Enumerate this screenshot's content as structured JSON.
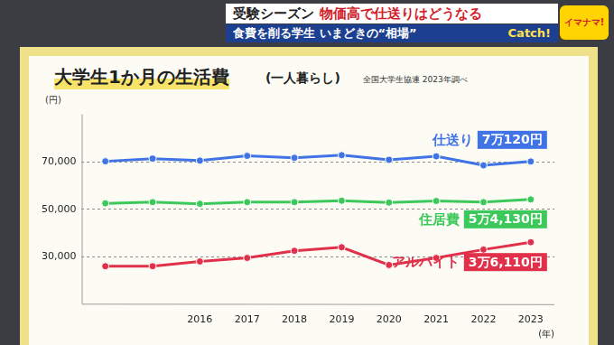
{
  "header": {
    "headline": [
      "受験シーズン",
      "物価高で仕送りはどうなる"
    ],
    "subheadline": "食費を削る学生 いまどきの“相場”",
    "tag": "Catch!",
    "logo": "イマナマ!"
  },
  "chart_data": {
    "type": "line",
    "title": "大学生1か月の生活費",
    "subtitle": "(一人暮らし)",
    "source": "全国大学生協連 2023年調べ",
    "y_label": "(円)",
    "x_label": "(年)",
    "categories": [
      null,
      null,
      "2016",
      "2017",
      "2018",
      "2019",
      "2020",
      "2021",
      "2022",
      "2023"
    ],
    "series": [
      {
        "name": "仕送り",
        "color": "#3f73e6",
        "marker": "circle",
        "values": [
          70200,
          71300,
          70500,
          72500,
          71700,
          72800,
          70800,
          72300,
          68500,
          70120
        ],
        "value_labels": [
          null,
          null,
          null,
          null,
          null,
          null,
          null,
          null,
          null,
          "7万120円"
        ]
      },
      {
        "name": "住居費",
        "color": "#3cc85a",
        "marker": "circle",
        "values": [
          52500,
          53000,
          52300,
          53000,
          53000,
          53600,
          52800,
          53500,
          53000,
          54130
        ],
        "value_labels": [
          null,
          null,
          null,
          null,
          null,
          null,
          null,
          null,
          null,
          "5万4,130円"
        ]
      },
      {
        "name": "アルバイト",
        "color": "#e0304a",
        "marker": "circle",
        "values": [
          26000,
          26000,
          28000,
          29500,
          32500,
          34000,
          26500,
          29500,
          33000,
          36110
        ],
        "value_labels": [
          null,
          null,
          null,
          null,
          null,
          null,
          null,
          null,
          null,
          "3万6,110円"
        ]
      }
    ],
    "ylim": [
      10000,
      90000
    ],
    "yticks": [
      {
        "value": 30000,
        "label": "30,000"
      },
      {
        "value": 50000,
        "label": "50,000"
      },
      {
        "value": 70000,
        "label": "70,000"
      }
    ],
    "grid": true
  }
}
